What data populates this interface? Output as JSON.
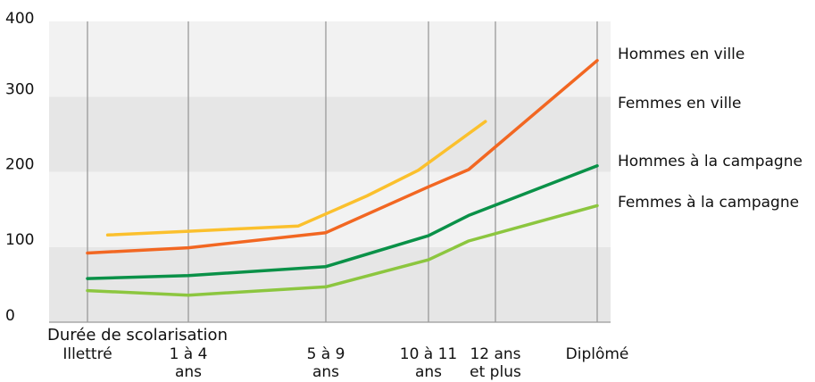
{
  "chart_data": {
    "type": "line",
    "xlabel": "Durée de scolarisation",
    "ylabel": "",
    "ylim": [
      0,
      400
    ],
    "yticks": [
      0,
      100,
      200,
      300,
      400
    ],
    "categories": [
      {
        "lines": [
          "Illettré"
        ]
      },
      {
        "lines": [
          "1 à 4",
          "ans"
        ]
      },
      {
        "lines": [
          "5 à 9",
          "ans"
        ]
      },
      {
        "lines": [
          "10 à 11",
          "ans"
        ]
      },
      {
        "lines": [
          "12 ans",
          "et plus"
        ]
      },
      {
        "lines": [
          "Diplômé"
        ]
      }
    ],
    "grid": "vertical lines at categories, alternating horizontal bands",
    "legend_placement": "right",
    "series": [
      {
        "name": "Hommes en ville",
        "color": "#f26722",
        "points": [
          [
            0,
            92
          ],
          [
            1,
            99
          ],
          [
            2,
            119
          ],
          [
            3,
            180
          ],
          [
            3.6,
            203
          ],
          [
            5,
            348
          ]
        ]
      },
      {
        "name": "Femmes en ville",
        "color": "#fbc02d",
        "points": [
          [
            0.2,
            116
          ],
          [
            1,
            121
          ],
          [
            1.8,
            128
          ],
          [
            2.4,
            168
          ],
          [
            2.9,
            202
          ],
          [
            3.85,
            267
          ]
        ]
      },
      {
        "name": "Hommes à la campagne",
        "color": "#0a9148",
        "points": [
          [
            0,
            58
          ],
          [
            1,
            62
          ],
          [
            2,
            74
          ],
          [
            3,
            115
          ],
          [
            3.6,
            142
          ],
          [
            5,
            208
          ]
        ]
      },
      {
        "name": "Femmes à la campagne",
        "color": "#8cc63f",
        "points": [
          [
            0,
            42
          ],
          [
            1,
            36
          ],
          [
            2,
            47
          ],
          [
            3,
            83
          ],
          [
            3.6,
            108
          ],
          [
            5,
            155
          ]
        ]
      }
    ]
  }
}
